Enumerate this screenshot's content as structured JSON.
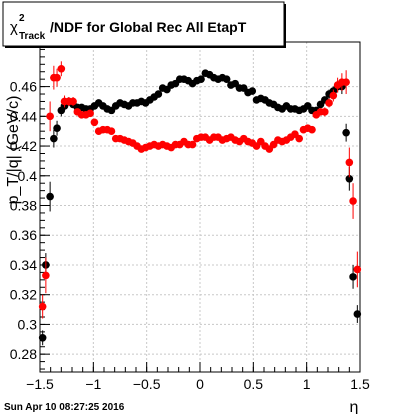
{
  "title": {
    "chi": "χ",
    "sup": "2",
    "sub": "Track",
    "rest": "/NDF for Global Rec All EtapT"
  },
  "footer": {
    "timestamp": "Sun Apr 10 08:27:25 2016"
  },
  "colors": {
    "series_black": "#000000",
    "series_red": "#ff0000",
    "background": "#ffffff",
    "grid": "#c8c8c8"
  },
  "chart_data": {
    "type": "scatter",
    "title": "χ²_Track/NDF for Global Rec All EtapT",
    "xlabel": "η",
    "ylabel": "p_T/|q| (GeV/c)",
    "xlim": [
      -1.5,
      1.5
    ],
    "ylim": [
      0.268,
      0.49
    ],
    "grid": true,
    "legend": "none",
    "x_ticks": [
      {
        "value": -1.5,
        "label": "−1.5"
      },
      {
        "value": -1.0,
        "label": "−1"
      },
      {
        "value": -0.5,
        "label": "−0.5"
      },
      {
        "value": 0.0,
        "label": "0"
      },
      {
        "value": 0.5,
        "label": "0.5"
      },
      {
        "value": 1.0,
        "label": "1"
      },
      {
        "value": 1.5,
        "label": "1.5"
      }
    ],
    "y_ticks": [
      {
        "value": 0.28,
        "label": "0.28"
      },
      {
        "value": 0.3,
        "label": "0.3"
      },
      {
        "value": 0.32,
        "label": "0.32"
      },
      {
        "value": 0.34,
        "label": "0.34"
      },
      {
        "value": 0.36,
        "label": "0.36"
      },
      {
        "value": 0.38,
        "label": "0.38"
      },
      {
        "value": 0.4,
        "label": "0.4"
      },
      {
        "value": 0.42,
        "label": "0.42"
      },
      {
        "value": 0.44,
        "label": "0.44"
      },
      {
        "value": 0.46,
        "label": "0.46"
      }
    ],
    "series": [
      {
        "color": "#000000",
        "points": [
          {
            "x": -1.475,
            "y": 0.291,
            "err": 0.005
          },
          {
            "x": -1.445,
            "y": 0.34,
            "err": 0.008
          },
          {
            "x": -1.405,
            "y": 0.386,
            "err": 0.01
          },
          {
            "x": -1.37,
            "y": 0.425,
            "err": 0.006
          },
          {
            "x": -1.34,
            "y": 0.432,
            "err": 0.005
          },
          {
            "x": -1.3,
            "y": 0.444,
            "err": 0.004
          },
          {
            "x": -1.27,
            "y": 0.447,
            "err": 0.003
          },
          {
            "x": -1.23,
            "y": 0.45,
            "err": 0.002
          },
          {
            "x": -1.19,
            "y": 0.448,
            "err": 0.002
          },
          {
            "x": -1.15,
            "y": 0.446,
            "err": 0.002
          },
          {
            "x": -1.11,
            "y": 0.446,
            "err": 0.002
          },
          {
            "x": -1.07,
            "y": 0.445,
            "err": 0.001
          },
          {
            "x": -1.03,
            "y": 0.445,
            "err": 0.001
          },
          {
            "x": -0.99,
            "y": 0.447,
            "err": 0.001
          },
          {
            "x": -0.95,
            "y": 0.449,
            "err": 0.001
          },
          {
            "x": -0.91,
            "y": 0.447,
            "err": 0.001
          },
          {
            "x": -0.87,
            "y": 0.445,
            "err": 0.001
          },
          {
            "x": -0.83,
            "y": 0.444,
            "err": 0.001
          },
          {
            "x": -0.79,
            "y": 0.447,
            "err": 0.001
          },
          {
            "x": -0.75,
            "y": 0.449,
            "err": 0.001
          },
          {
            "x": -0.71,
            "y": 0.448,
            "err": 0.001
          },
          {
            "x": -0.67,
            "y": 0.447,
            "err": 0.001
          },
          {
            "x": -0.63,
            "y": 0.449,
            "err": 0.001
          },
          {
            "x": -0.59,
            "y": 0.449,
            "err": 0.001
          },
          {
            "x": -0.55,
            "y": 0.45,
            "err": 0.001
          },
          {
            "x": -0.51,
            "y": 0.449,
            "err": 0.001
          },
          {
            "x": -0.47,
            "y": 0.451,
            "err": 0.001
          },
          {
            "x": -0.43,
            "y": 0.453,
            "err": 0.001
          },
          {
            "x": -0.39,
            "y": 0.455,
            "err": 0.001
          },
          {
            "x": -0.35,
            "y": 0.459,
            "err": 0.001
          },
          {
            "x": -0.31,
            "y": 0.458,
            "err": 0.001
          },
          {
            "x": -0.27,
            "y": 0.461,
            "err": 0.001
          },
          {
            "x": -0.23,
            "y": 0.462,
            "err": 0.001
          },
          {
            "x": -0.19,
            "y": 0.465,
            "err": 0.001
          },
          {
            "x": -0.15,
            "y": 0.465,
            "err": 0.001
          },
          {
            "x": -0.11,
            "y": 0.464,
            "err": 0.001
          },
          {
            "x": -0.07,
            "y": 0.462,
            "err": 0.001
          },
          {
            "x": -0.03,
            "y": 0.464,
            "err": 0.001
          },
          {
            "x": 0.01,
            "y": 0.465,
            "err": 0.001
          },
          {
            "x": 0.05,
            "y": 0.469,
            "err": 0.001
          },
          {
            "x": 0.09,
            "y": 0.468,
            "err": 0.001
          },
          {
            "x": 0.13,
            "y": 0.466,
            "err": 0.001
          },
          {
            "x": 0.17,
            "y": 0.465,
            "err": 0.001
          },
          {
            "x": 0.21,
            "y": 0.466,
            "err": 0.001
          },
          {
            "x": 0.25,
            "y": 0.465,
            "err": 0.001
          },
          {
            "x": 0.29,
            "y": 0.461,
            "err": 0.001
          },
          {
            "x": 0.33,
            "y": 0.462,
            "err": 0.001
          },
          {
            "x": 0.37,
            "y": 0.459,
            "err": 0.001
          },
          {
            "x": 0.41,
            "y": 0.459,
            "err": 0.001
          },
          {
            "x": 0.45,
            "y": 0.456,
            "err": 0.001
          },
          {
            "x": 0.49,
            "y": 0.457,
            "err": 0.001
          },
          {
            "x": 0.53,
            "y": 0.451,
            "err": 0.001
          },
          {
            "x": 0.57,
            "y": 0.452,
            "err": 0.001
          },
          {
            "x": 0.61,
            "y": 0.451,
            "err": 0.001
          },
          {
            "x": 0.65,
            "y": 0.449,
            "err": 0.001
          },
          {
            "x": 0.69,
            "y": 0.448,
            "err": 0.001
          },
          {
            "x": 0.73,
            "y": 0.446,
            "err": 0.001
          },
          {
            "x": 0.77,
            "y": 0.445,
            "err": 0.001
          },
          {
            "x": 0.81,
            "y": 0.447,
            "err": 0.001
          },
          {
            "x": 0.85,
            "y": 0.445,
            "err": 0.001
          },
          {
            "x": 0.89,
            "y": 0.445,
            "err": 0.001
          },
          {
            "x": 0.93,
            "y": 0.444,
            "err": 0.001
          },
          {
            "x": 0.97,
            "y": 0.445,
            "err": 0.001
          },
          {
            "x": 1.01,
            "y": 0.447,
            "err": 0.001
          },
          {
            "x": 1.05,
            "y": 0.444,
            "err": 0.002
          },
          {
            "x": 1.09,
            "y": 0.444,
            "err": 0.002
          },
          {
            "x": 1.13,
            "y": 0.448,
            "err": 0.002
          },
          {
            "x": 1.17,
            "y": 0.451,
            "err": 0.002
          },
          {
            "x": 1.21,
            "y": 0.455,
            "err": 0.003
          },
          {
            "x": 1.25,
            "y": 0.457,
            "err": 0.003
          },
          {
            "x": 1.29,
            "y": 0.46,
            "err": 0.004
          },
          {
            "x": 1.33,
            "y": 0.46,
            "err": 0.005
          },
          {
            "x": 1.37,
            "y": 0.429,
            "err": 0.006
          },
          {
            "x": 1.4,
            "y": 0.398,
            "err": 0.008
          },
          {
            "x": 1.435,
            "y": 0.332,
            "err": 0.008
          },
          {
            "x": 1.475,
            "y": 0.307,
            "err": 0.006
          }
        ]
      },
      {
        "color": "#ff0000",
        "points": [
          {
            "x": -1.475,
            "y": 0.312,
            "err": 0.008
          },
          {
            "x": -1.445,
            "y": 0.333,
            "err": 0.012
          },
          {
            "x": -1.405,
            "y": 0.44,
            "err": 0.01
          },
          {
            "x": -1.37,
            "y": 0.466,
            "err": 0.008
          },
          {
            "x": -1.34,
            "y": 0.466,
            "err": 0.006
          },
          {
            "x": -1.3,
            "y": 0.472,
            "err": 0.005
          },
          {
            "x": -1.27,
            "y": 0.45,
            "err": 0.004
          },
          {
            "x": -1.23,
            "y": 0.45,
            "err": 0.003
          },
          {
            "x": -1.19,
            "y": 0.45,
            "err": 0.003
          },
          {
            "x": -1.15,
            "y": 0.443,
            "err": 0.002
          },
          {
            "x": -1.11,
            "y": 0.441,
            "err": 0.002
          },
          {
            "x": -1.07,
            "y": 0.441,
            "err": 0.002
          },
          {
            "x": -1.03,
            "y": 0.442,
            "err": 0.002
          },
          {
            "x": -0.99,
            "y": 0.436,
            "err": 0.002
          },
          {
            "x": -0.95,
            "y": 0.43,
            "err": 0.002
          },
          {
            "x": -0.91,
            "y": 0.431,
            "err": 0.001
          },
          {
            "x": -0.87,
            "y": 0.431,
            "err": 0.001
          },
          {
            "x": -0.83,
            "y": 0.43,
            "err": 0.001
          },
          {
            "x": -0.79,
            "y": 0.425,
            "err": 0.001
          },
          {
            "x": -0.75,
            "y": 0.425,
            "err": 0.001
          },
          {
            "x": -0.71,
            "y": 0.424,
            "err": 0.001
          },
          {
            "x": -0.67,
            "y": 0.423,
            "err": 0.001
          },
          {
            "x": -0.63,
            "y": 0.422,
            "err": 0.001
          },
          {
            "x": -0.59,
            "y": 0.42,
            "err": 0.001
          },
          {
            "x": -0.55,
            "y": 0.418,
            "err": 0.001
          },
          {
            "x": -0.51,
            "y": 0.419,
            "err": 0.001
          },
          {
            "x": -0.47,
            "y": 0.42,
            "err": 0.001
          },
          {
            "x": -0.43,
            "y": 0.421,
            "err": 0.001
          },
          {
            "x": -0.39,
            "y": 0.42,
            "err": 0.001
          },
          {
            "x": -0.35,
            "y": 0.421,
            "err": 0.001
          },
          {
            "x": -0.31,
            "y": 0.42,
            "err": 0.001
          },
          {
            "x": -0.27,
            "y": 0.419,
            "err": 0.001
          },
          {
            "x": -0.23,
            "y": 0.421,
            "err": 0.001
          },
          {
            "x": -0.19,
            "y": 0.421,
            "err": 0.001
          },
          {
            "x": -0.15,
            "y": 0.423,
            "err": 0.001
          },
          {
            "x": -0.11,
            "y": 0.421,
            "err": 0.001
          },
          {
            "x": -0.07,
            "y": 0.421,
            "err": 0.001
          },
          {
            "x": -0.03,
            "y": 0.425,
            "err": 0.001
          },
          {
            "x": 0.01,
            "y": 0.426,
            "err": 0.001
          },
          {
            "x": 0.05,
            "y": 0.426,
            "err": 0.001
          },
          {
            "x": 0.09,
            "y": 0.424,
            "err": 0.001
          },
          {
            "x": 0.13,
            "y": 0.426,
            "err": 0.001
          },
          {
            "x": 0.17,
            "y": 0.426,
            "err": 0.001
          },
          {
            "x": 0.21,
            "y": 0.424,
            "err": 0.001
          },
          {
            "x": 0.25,
            "y": 0.425,
            "err": 0.001
          },
          {
            "x": 0.29,
            "y": 0.426,
            "err": 0.001
          },
          {
            "x": 0.33,
            "y": 0.424,
            "err": 0.001
          },
          {
            "x": 0.37,
            "y": 0.423,
            "err": 0.001
          },
          {
            "x": 0.41,
            "y": 0.425,
            "err": 0.001
          },
          {
            "x": 0.45,
            "y": 0.423,
            "err": 0.001
          },
          {
            "x": 0.49,
            "y": 0.422,
            "err": 0.001
          },
          {
            "x": 0.53,
            "y": 0.42,
            "err": 0.001
          },
          {
            "x": 0.57,
            "y": 0.423,
            "err": 0.001
          },
          {
            "x": 0.61,
            "y": 0.42,
            "err": 0.001
          },
          {
            "x": 0.65,
            "y": 0.418,
            "err": 0.001
          },
          {
            "x": 0.69,
            "y": 0.421,
            "err": 0.001
          },
          {
            "x": 0.73,
            "y": 0.424,
            "err": 0.001
          },
          {
            "x": 0.77,
            "y": 0.423,
            "err": 0.001
          },
          {
            "x": 0.81,
            "y": 0.424,
            "err": 0.001
          },
          {
            "x": 0.85,
            "y": 0.426,
            "err": 0.001
          },
          {
            "x": 0.89,
            "y": 0.428,
            "err": 0.001
          },
          {
            "x": 0.93,
            "y": 0.425,
            "err": 0.001
          },
          {
            "x": 0.97,
            "y": 0.431,
            "err": 0.002
          },
          {
            "x": 1.01,
            "y": 0.432,
            "err": 0.002
          },
          {
            "x": 1.05,
            "y": 0.431,
            "err": 0.002
          },
          {
            "x": 1.09,
            "y": 0.441,
            "err": 0.002
          },
          {
            "x": 1.13,
            "y": 0.443,
            "err": 0.002
          },
          {
            "x": 1.17,
            "y": 0.443,
            "err": 0.003
          },
          {
            "x": 1.21,
            "y": 0.449,
            "err": 0.003
          },
          {
            "x": 1.25,
            "y": 0.454,
            "err": 0.004
          },
          {
            "x": 1.29,
            "y": 0.461,
            "err": 0.005
          },
          {
            "x": 1.33,
            "y": 0.463,
            "err": 0.006
          },
          {
            "x": 1.37,
            "y": 0.463,
            "err": 0.008
          },
          {
            "x": 1.4,
            "y": 0.409,
            "err": 0.01
          },
          {
            "x": 1.435,
            "y": 0.383,
            "err": 0.012
          },
          {
            "x": 1.475,
            "y": 0.337,
            "err": 0.012
          }
        ]
      }
    ]
  }
}
